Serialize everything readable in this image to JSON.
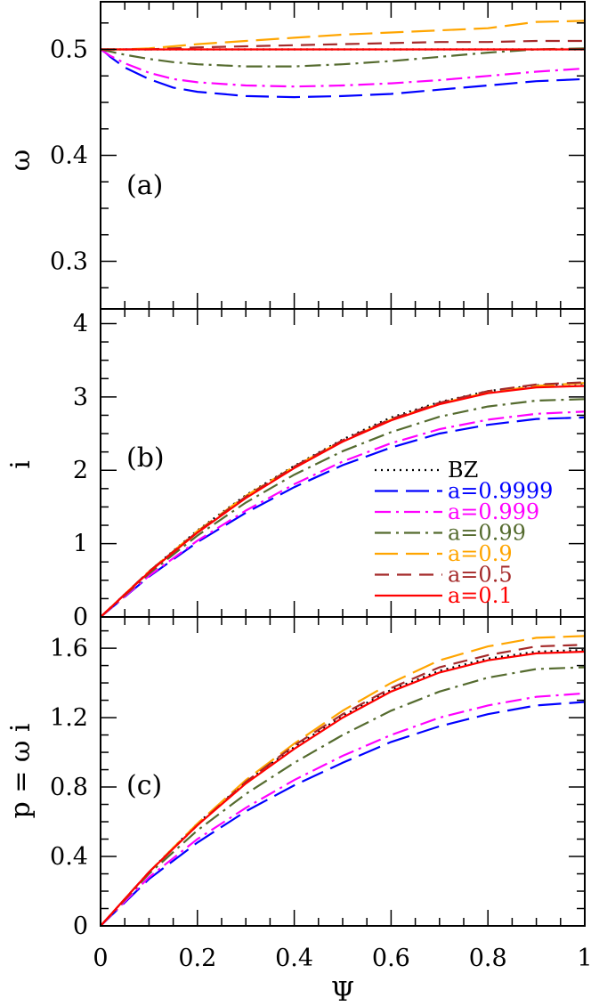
{
  "chart_data": {
    "type": "line",
    "x_label": "Ψ",
    "x_ticks": [
      "0",
      "0.2",
      "0.4",
      "0.6",
      "0.8",
      "1"
    ],
    "xlim": [
      0,
      1
    ],
    "legend": {
      "placement": "panel-b-right",
      "entries": [
        {
          "label": "BZ",
          "color": "#000000",
          "dash": "dotted"
        },
        {
          "label": "a=0.9999",
          "color": "#0000ff",
          "dash": "long-dash"
        },
        {
          "label": "a=0.999",
          "color": "#ff00ff",
          "dash": "dash-dot"
        },
        {
          "label": "a=0.99",
          "color": "#556b2f",
          "dash": "dash-dot"
        },
        {
          "label": "a=0.9",
          "color": "#ffa500",
          "dash": "long-dash"
        },
        {
          "label": "a=0.5",
          "color": "#a52a2a",
          "dash": "dash"
        },
        {
          "label": "a=0.1",
          "color": "#ff0000",
          "dash": "solid"
        }
      ]
    },
    "panels": [
      {
        "tag": "(a)",
        "ylabel": "ω",
        "ylim": [
          0.255,
          0.545
        ],
        "y_ticks": [
          "0.3",
          "0.4",
          "0.5"
        ],
        "y_tick_values": [
          0.3,
          0.4,
          0.5
        ],
        "x": [
          0,
          0.01,
          0.02,
          0.05,
          0.1,
          0.15,
          0.2,
          0.3,
          0.4,
          0.5,
          0.6,
          0.7,
          0.8,
          0.9,
          1.0
        ],
        "series": [
          {
            "name": "BZ",
            "values": [
              0.5,
              0.5,
              0.5,
              0.5,
              0.5,
              0.5,
              0.5,
              0.5,
              0.5,
              0.5,
              0.5,
              0.5,
              0.5,
              0.5,
              0.5
            ]
          },
          {
            "name": "a=0.9999",
            "values": [
              0.5,
              0.497,
              0.493,
              0.483,
              0.472,
              0.464,
              0.46,
              0.456,
              0.455,
              0.456,
              0.458,
              0.462,
              0.466,
              0.47,
              0.472
            ]
          },
          {
            "name": "a=0.999",
            "values": [
              0.5,
              0.497,
              0.494,
              0.487,
              0.478,
              0.472,
              0.469,
              0.466,
              0.465,
              0.466,
              0.468,
              0.471,
              0.475,
              0.479,
              0.482
            ]
          },
          {
            "name": "a=0.99",
            "values": [
              0.5,
              0.499,
              0.498,
              0.495,
              0.491,
              0.488,
              0.486,
              0.484,
              0.484,
              0.486,
              0.489,
              0.493,
              0.497,
              0.5,
              0.501
            ]
          },
          {
            "name": "a=0.9",
            "values": [
              0.5,
              0.5,
              0.5,
              0.5,
              0.501,
              0.503,
              0.505,
              0.508,
              0.511,
              0.514,
              0.516,
              0.518,
              0.52,
              0.526,
              0.527
            ]
          },
          {
            "name": "a=0.5",
            "values": [
              0.5,
              0.5,
              0.5,
              0.5,
              0.5,
              0.501,
              0.502,
              0.503,
              0.504,
              0.505,
              0.506,
              0.507,
              0.507,
              0.508,
              0.508
            ]
          },
          {
            "name": "a=0.1",
            "values": [
              0.5,
              0.5,
              0.5,
              0.5,
              0.5,
              0.5,
              0.5,
              0.5,
              0.5,
              0.5,
              0.5,
              0.5,
              0.5,
              0.5,
              0.5
            ]
          }
        ]
      },
      {
        "tag": "(b)",
        "ylabel": "i",
        "ylim": [
          0,
          4.2
        ],
        "y_ticks": [
          "0",
          "1",
          "2",
          "3",
          "4"
        ],
        "y_tick_values": [
          0,
          1,
          2,
          3,
          4
        ],
        "x": [
          0,
          0.1,
          0.2,
          0.3,
          0.4,
          0.5,
          0.6,
          0.7,
          0.8,
          0.9,
          1.0
        ],
        "series": [
          {
            "name": "BZ",
            "values": [
              0,
              0.62,
              1.18,
              1.66,
              2.06,
              2.42,
              2.72,
              2.93,
              3.08,
              3.16,
              3.18
            ]
          },
          {
            "name": "a=0.9999",
            "values": [
              0,
              0.55,
              1.02,
              1.42,
              1.77,
              2.07,
              2.31,
              2.5,
              2.62,
              2.7,
              2.72
            ]
          },
          {
            "name": "a=0.999",
            "values": [
              0,
              0.56,
              1.04,
              1.45,
              1.81,
              2.12,
              2.37,
              2.56,
              2.69,
              2.77,
              2.8
            ]
          },
          {
            "name": "a=0.99",
            "values": [
              0,
              0.59,
              1.11,
              1.56,
              1.94,
              2.26,
              2.52,
              2.73,
              2.87,
              2.95,
              2.97
            ]
          },
          {
            "name": "a=0.9",
            "values": [
              0,
              0.62,
              1.17,
              1.65,
              2.05,
              2.4,
              2.69,
              2.91,
              3.06,
              3.15,
              3.19
            ]
          },
          {
            "name": "a=0.5",
            "values": [
              0,
              0.62,
              1.16,
              1.64,
              2.05,
              2.41,
              2.7,
              2.92,
              3.08,
              3.17,
              3.2
            ]
          },
          {
            "name": "a=0.1",
            "values": [
              0,
              0.61,
              1.15,
              1.62,
              2.03,
              2.39,
              2.68,
              2.9,
              3.05,
              3.13,
              3.15
            ]
          }
        ]
      },
      {
        "tag": "(c)",
        "ylabel": "p = ω i",
        "ylim": [
          0,
          1.78
        ],
        "y_ticks": [
          "0",
          "0.4",
          "0.8",
          "1.2",
          "1.6"
        ],
        "y_tick_values": [
          0,
          0.4,
          0.8,
          1.2,
          1.6
        ],
        "x": [
          0,
          0.1,
          0.2,
          0.3,
          0.4,
          0.5,
          0.6,
          0.7,
          0.8,
          0.9,
          1.0
        ],
        "series": [
          {
            "name": "BZ",
            "values": [
              0,
              0.31,
              0.59,
              0.83,
              1.03,
              1.21,
              1.36,
              1.47,
              1.54,
              1.58,
              1.59
            ]
          },
          {
            "name": "a=0.9999",
            "values": [
              0,
              0.27,
              0.48,
              0.66,
              0.81,
              0.94,
              1.06,
              1.15,
              1.22,
              1.27,
              1.29
            ]
          },
          {
            "name": "a=0.999",
            "values": [
              0,
              0.28,
              0.5,
              0.68,
              0.84,
              0.98,
              1.1,
              1.2,
              1.27,
              1.32,
              1.34
            ]
          },
          {
            "name": "a=0.99",
            "values": [
              0,
              0.3,
              0.55,
              0.76,
              0.94,
              1.1,
              1.24,
              1.35,
              1.43,
              1.48,
              1.49
            ]
          },
          {
            "name": "a=0.9",
            "values": [
              0,
              0.31,
              0.59,
              0.84,
              1.05,
              1.24,
              1.4,
              1.53,
              1.61,
              1.66,
              1.67
            ]
          },
          {
            "name": "a=0.5",
            "values": [
              0,
              0.31,
              0.58,
              0.83,
              1.04,
              1.22,
              1.37,
              1.49,
              1.56,
              1.61,
              1.62
            ]
          },
          {
            "name": "a=0.1",
            "values": [
              0,
              0.31,
              0.58,
              0.82,
              1.02,
              1.2,
              1.35,
              1.46,
              1.53,
              1.57,
              1.58
            ]
          }
        ]
      }
    ]
  }
}
